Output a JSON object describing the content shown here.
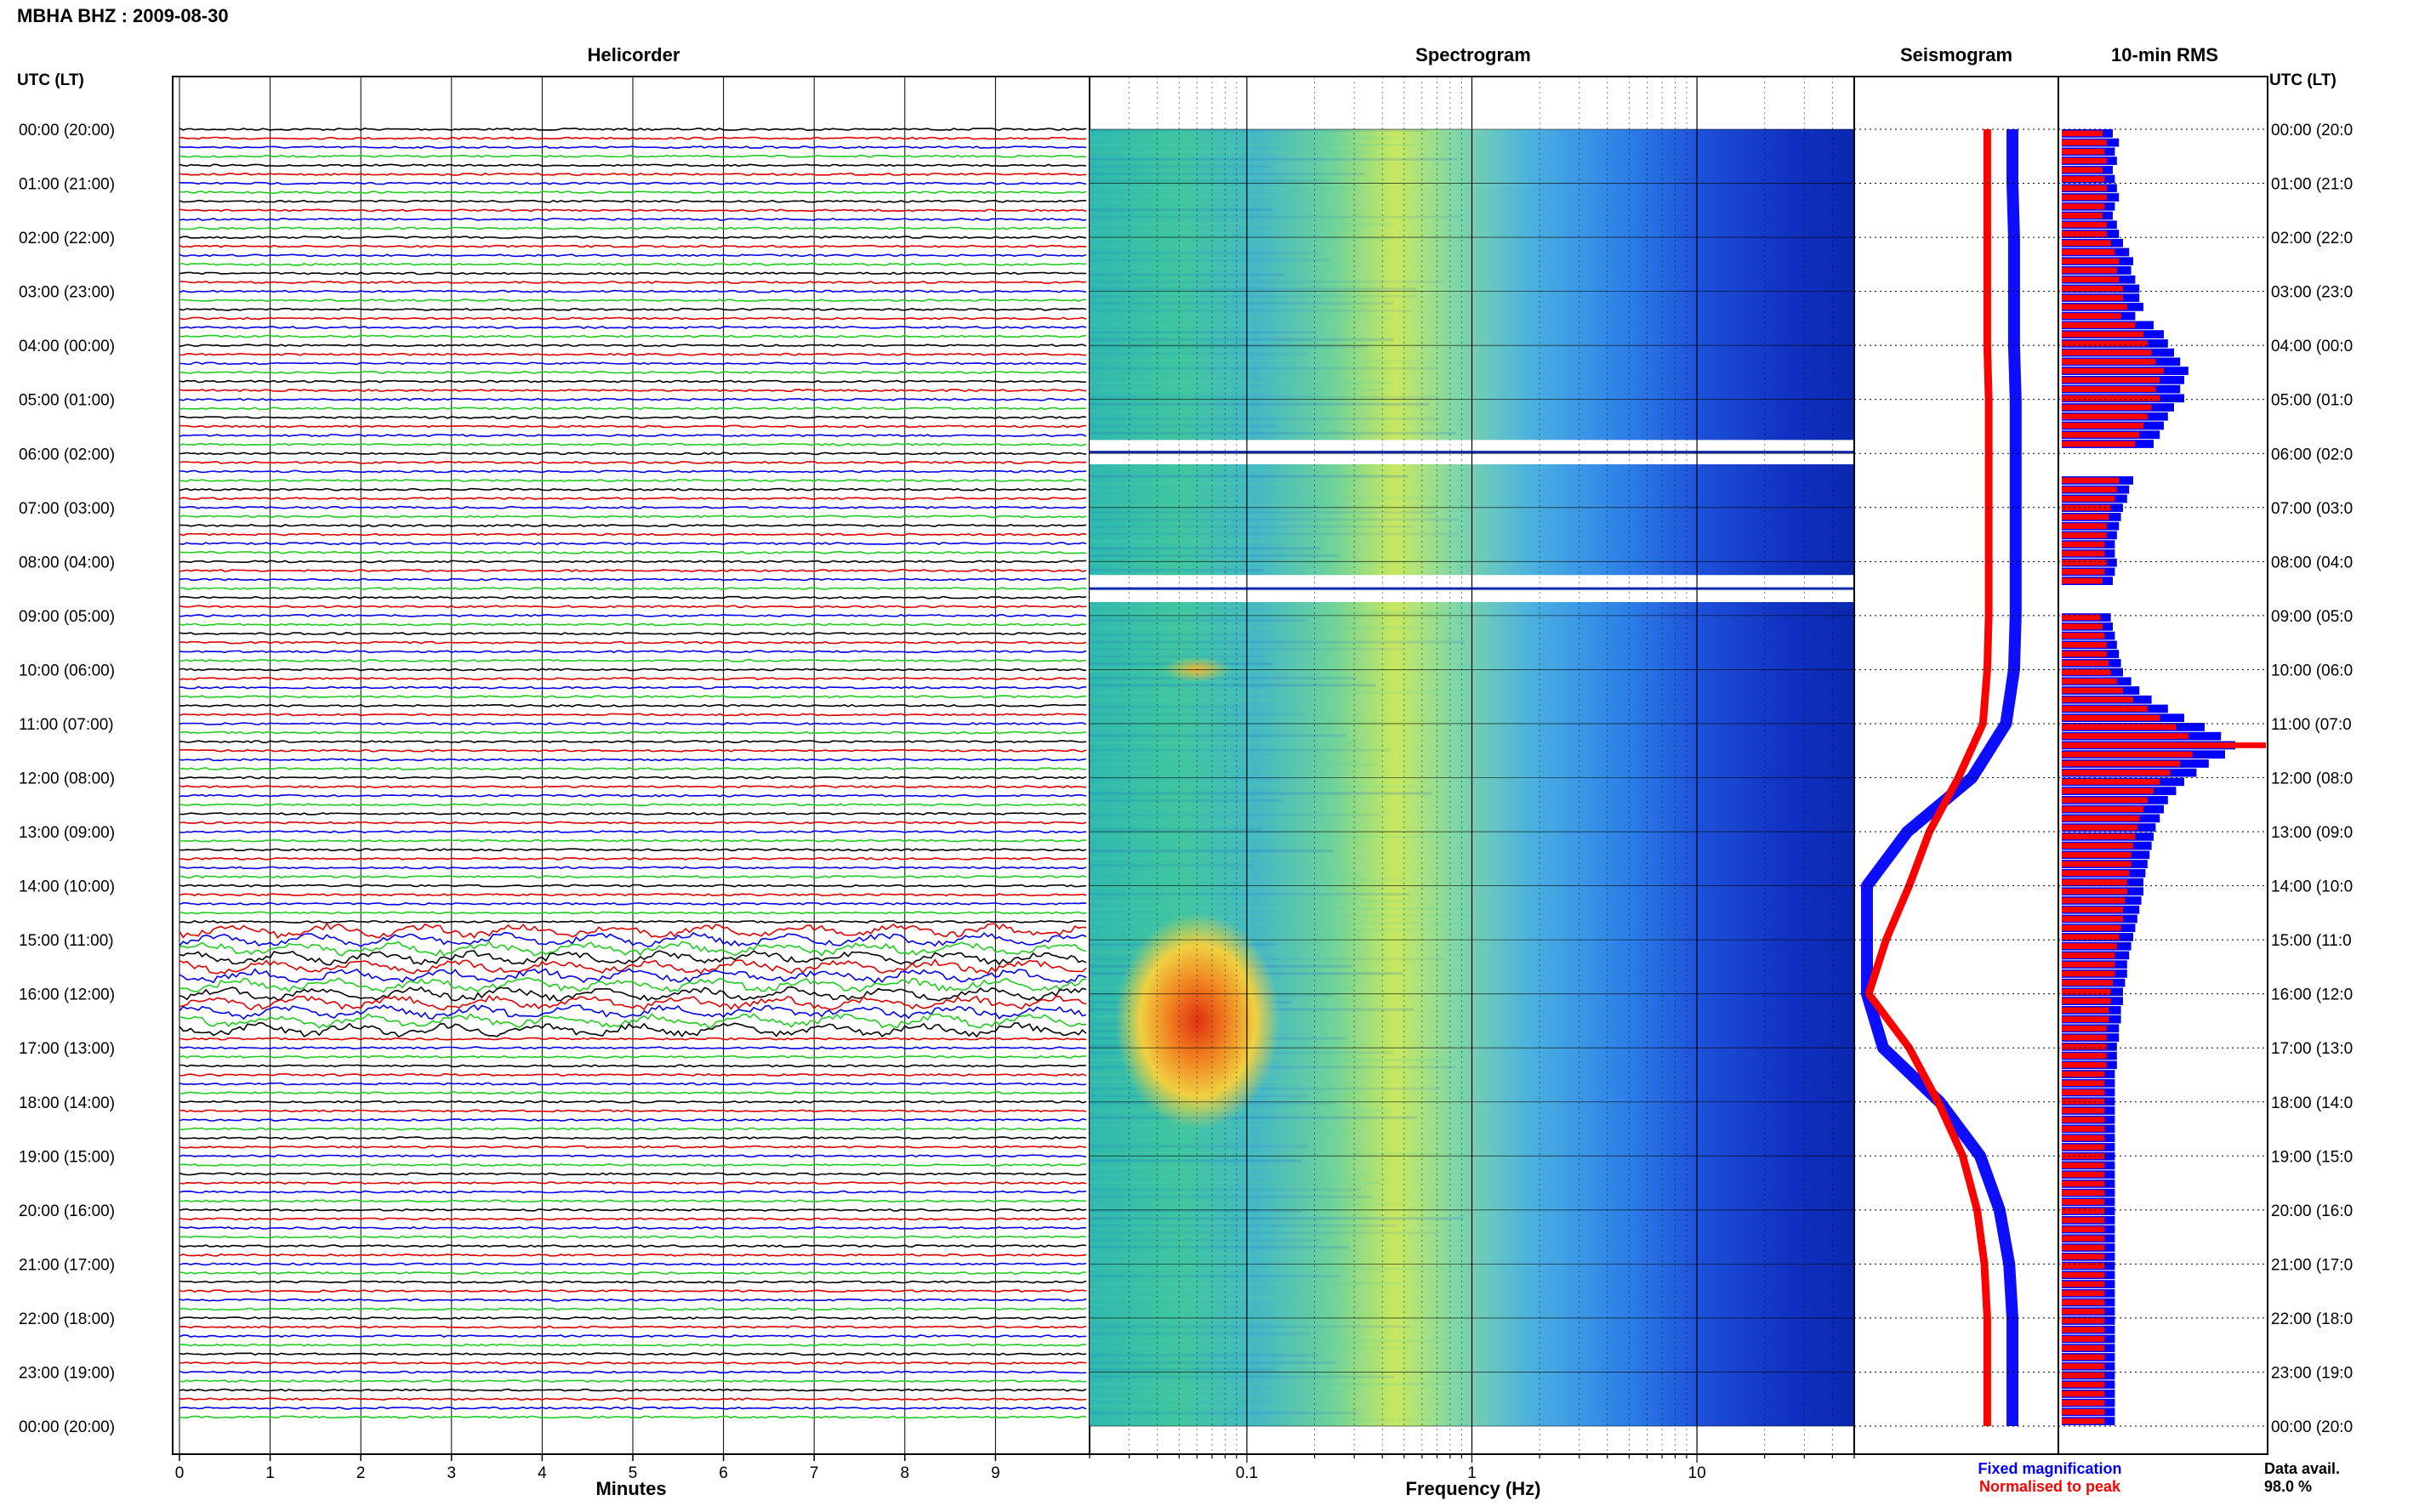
{
  "header": {
    "title": "MBHA BHZ : 2009-08-30"
  },
  "panels": {
    "helicorder": "Helicorder",
    "spectrogram": "Spectrogram",
    "seismogram": "Seismogram",
    "rms": "10-min RMS"
  },
  "axes": {
    "left_time_label": "UTC (LT)",
    "right_time_label": "UTC (LT)",
    "minutes_label": "Minutes",
    "frequency_label": "Frequency (Hz)"
  },
  "legend": {
    "fixed": "Fixed magnification",
    "normalised": "Normalised to peak"
  },
  "data_avail": {
    "label": "Data avail.",
    "value": "98.0 %"
  },
  "colors": {
    "trace_cycle": [
      "#000000",
      "#e00000",
      "#0000ee",
      "#22cc22"
    ],
    "fixed": "#0000ff",
    "normalised": "#ff0000",
    "grid": "#000000"
  },
  "chart_data": {
    "type": "heatmap",
    "time_labels": [
      "00:00 (20:00)",
      "01:00 (21:00)",
      "02:00 (22:00)",
      "03:00 (23:00)",
      "04:00 (00:00)",
      "05:00 (01:00)",
      "06:00 (02:00)",
      "07:00 (03:00)",
      "08:00 (04:00)",
      "09:00 (05:00)",
      "10:00 (06:00)",
      "11:00 (07:00)",
      "12:00 (08:00)",
      "13:00 (09:00)",
      "14:00 (10:00)",
      "15:00 (11:00)",
      "16:00 (12:00)",
      "17:00 (13:00)",
      "18:00 (14:00)",
      "19:00 (15:00)",
      "20:00 (16:00)",
      "21:00 (17:00)",
      "22:00 (18:00)",
      "23:00 (19:00)",
      "00:00 (20:00)"
    ],
    "right_time_labels": [
      "00:00 (20:0",
      "01:00 (21:0",
      "02:00 (22:0",
      "03:00 (23:0",
      "04:00 (00:0",
      "05:00 (01:0",
      "06:00 (02:0",
      "07:00 (03:0",
      "08:00 (04:0",
      "09:00 (05:0",
      "10:00 (06:0",
      "11:00 (07:0",
      "12:00 (08:0",
      "13:00 (09:0",
      "14:00 (10:0",
      "15:00 (11:0",
      "16:00 (12:0",
      "17:00 (13:0",
      "18:00 (14:0",
      "19:00 (15:0",
      "20:00 (16:0",
      "21:00 (17:0",
      "22:00 (18:0",
      "23:00 (19:0",
      "00:00 (20:0"
    ],
    "minute_ticks": [
      "0",
      "1",
      "2",
      "3",
      "4",
      "5",
      "6",
      "7",
      "8",
      "9"
    ],
    "frequency_ticks": [
      "0.1",
      "1",
      "10"
    ],
    "frequency_range_hz": [
      0.02,
      50
    ],
    "helicorder": {
      "minutes_per_line": 10,
      "lines": 144,
      "high_amplitude_hours": [
        15,
        16
      ]
    },
    "data_gaps_hours": [
      [
        5.75,
        6.2
      ],
      [
        8.25,
        8.75
      ]
    ],
    "spectrogram_hot_spot": {
      "hours": [
        15.5,
        17.5
      ],
      "frequency_hz": [
        0.04,
        0.1
      ]
    },
    "seismogram_fixed": [
      {
        "hour": 0,
        "amp": 0.1
      },
      {
        "hour": 1,
        "amp": 0.1
      },
      {
        "hour": 2,
        "amp": 0.09
      },
      {
        "hour": 3,
        "amp": 0.09
      },
      {
        "hour": 4,
        "amp": 0.09
      },
      {
        "hour": 5,
        "amp": 0.08
      },
      {
        "hour": 6,
        "amp": 0.08
      },
      {
        "hour": 7,
        "amp": 0.08
      },
      {
        "hour": 8,
        "amp": 0.08
      },
      {
        "hour": 9,
        "amp": 0.08
      },
      {
        "hour": 10,
        "amp": 0.09
      },
      {
        "hour": 11,
        "amp": 0.14
      },
      {
        "hour": 12,
        "amp": 0.35
      },
      {
        "hour": 13,
        "amp": 0.75
      },
      {
        "hour": 14,
        "amp": 1.0
      },
      {
        "hour": 15,
        "amp": 1.0
      },
      {
        "hour": 16,
        "amp": 1.0
      },
      {
        "hour": 17,
        "amp": 0.9
      },
      {
        "hour": 18,
        "amp": 0.55
      },
      {
        "hour": 19,
        "amp": 0.3
      },
      {
        "hour": 20,
        "amp": 0.18
      },
      {
        "hour": 21,
        "amp": 0.12
      },
      {
        "hour": 22,
        "amp": 0.1
      },
      {
        "hour": 23,
        "amp": 0.1
      },
      {
        "hour": 24,
        "amp": 0.1
      }
    ],
    "seismogram_normalised": [
      {
        "hour": 0,
        "amp": 0.08
      },
      {
        "hour": 1,
        "amp": 0.08
      },
      {
        "hour": 2,
        "amp": 0.08
      },
      {
        "hour": 3,
        "amp": 0.08
      },
      {
        "hour": 4,
        "amp": 0.08
      },
      {
        "hour": 5,
        "amp": 0.07
      },
      {
        "hour": 6,
        "amp": 0.07
      },
      {
        "hour": 7,
        "amp": 0.07
      },
      {
        "hour": 8,
        "amp": 0.07
      },
      {
        "hour": 9,
        "amp": 0.07
      },
      {
        "hour": 10,
        "amp": 0.08
      },
      {
        "hour": 11,
        "amp": 0.11
      },
      {
        "hour": 12,
        "amp": 0.28
      },
      {
        "hour": 13,
        "amp": 0.48
      },
      {
        "hour": 14,
        "amp": 0.62
      },
      {
        "hour": 15,
        "amp": 0.78
      },
      {
        "hour": 16,
        "amp": 0.9
      },
      {
        "hour": 17,
        "amp": 0.62
      },
      {
        "hour": 18,
        "amp": 0.42
      },
      {
        "hour": 19,
        "amp": 0.25
      },
      {
        "hour": 20,
        "amp": 0.15
      },
      {
        "hour": 21,
        "amp": 0.1
      },
      {
        "hour": 22,
        "amp": 0.08
      },
      {
        "hour": 23,
        "amp": 0.08
      },
      {
        "hour": 24,
        "amp": 0.08
      }
    ],
    "rms_10min_relative": {
      "fixed": [
        0.25,
        0.28,
        0.26,
        0.27,
        0.25,
        0.26,
        0.27,
        0.28,
        0.26,
        0.25,
        0.27,
        0.28,
        0.3,
        0.33,
        0.35,
        0.34,
        0.36,
        0.38,
        0.38,
        0.4,
        0.36,
        0.45,
        0.5,
        0.52,
        0.55,
        0.58,
        0.62,
        0.6,
        0.58,
        0.6,
        0.55,
        0.52,
        0.5,
        0.48,
        0.45,
        0.42,
        0.4,
        0.38,
        0.35,
        0.33,
        0.32,
        0.3,
        0.29,
        0.28,
        0.27,
        0.26,
        0.26,
        0.27,
        0.26,
        0.25,
        0.27,
        0.26,
        0.25,
        0.24,
        0.25,
        0.26,
        0.27,
        0.28,
        0.29,
        0.3,
        0.34,
        0.38,
        0.44,
        0.52,
        0.6,
        0.7,
        0.78,
        0.85,
        0.8,
        0.72,
        0.66,
        0.6,
        0.56,
        0.52,
        0.5,
        0.48,
        0.46,
        0.45,
        0.44,
        0.43,
        0.42,
        0.41,
        0.4,
        0.4,
        0.39,
        0.38,
        0.37,
        0.36,
        0.35,
        0.34,
        0.33,
        0.32,
        0.32,
        0.31,
        0.3,
        0.3,
        0.29,
        0.29,
        0.28,
        0.28,
        0.27,
        0.27,
        0.27,
        0.26,
        0.26,
        0.26,
        0.26,
        0.26,
        0.26,
        0.26,
        0.26,
        0.26,
        0.26,
        0.26,
        0.26,
        0.26,
        0.26,
        0.26,
        0.26,
        0.26,
        0.26,
        0.26,
        0.26,
        0.26,
        0.26,
        0.26,
        0.26,
        0.26,
        0.26,
        0.26,
        0.26,
        0.26,
        0.26,
        0.26,
        0.26,
        0.26,
        0.26,
        0.26,
        0.26,
        0.26,
        0.26,
        0.26
      ],
      "normalised": [
        0.2,
        0.22,
        0.21,
        0.22,
        0.2,
        0.21,
        0.22,
        0.22,
        0.21,
        0.2,
        0.22,
        0.22,
        0.24,
        0.26,
        0.28,
        0.27,
        0.28,
        0.3,
        0.3,
        0.32,
        0.29,
        0.36,
        0.4,
        0.42,
        0.44,
        0.46,
        0.5,
        0.48,
        0.46,
        0.48,
        0.44,
        0.42,
        0.4,
        0.38,
        0.36,
        0.34,
        0.32,
        0.3,
        0.28,
        0.27,
        0.26,
        0.24,
        0.23,
        0.22,
        0.22,
        0.21,
        0.21,
        0.22,
        0.21,
        0.2,
        0.22,
        0.21,
        0.2,
        0.19,
        0.2,
        0.21,
        0.22,
        0.22,
        0.23,
        0.24,
        0.27,
        0.3,
        0.35,
        0.42,
        0.48,
        0.56,
        0.62,
        1.0,
        0.64,
        0.58,
        0.53,
        0.48,
        0.45,
        0.42,
        0.4,
        0.38,
        0.37,
        0.36,
        0.35,
        0.34,
        0.34,
        0.33,
        0.32,
        0.32,
        0.31,
        0.3,
        0.3,
        0.29,
        0.28,
        0.27,
        0.26,
        0.26,
        0.26,
        0.25,
        0.24,
        0.24,
        0.23,
        0.23,
        0.22,
        0.22,
        0.22,
        0.22,
        0.22,
        0.21,
        0.21,
        0.21,
        0.21,
        0.21,
        0.21,
        0.21,
        0.21,
        0.21,
        0.21,
        0.21,
        0.21,
        0.21,
        0.21,
        0.21,
        0.21,
        0.21,
        0.21,
        0.21,
        0.21,
        0.21,
        0.21,
        0.21,
        0.21,
        0.21,
        0.21,
        0.21,
        0.21,
        0.21,
        0.21,
        0.21,
        0.21,
        0.21,
        0.21,
        0.21,
        0.21,
        0.21,
        0.21,
        0.21,
        0.21,
        0.21
      ]
    }
  }
}
